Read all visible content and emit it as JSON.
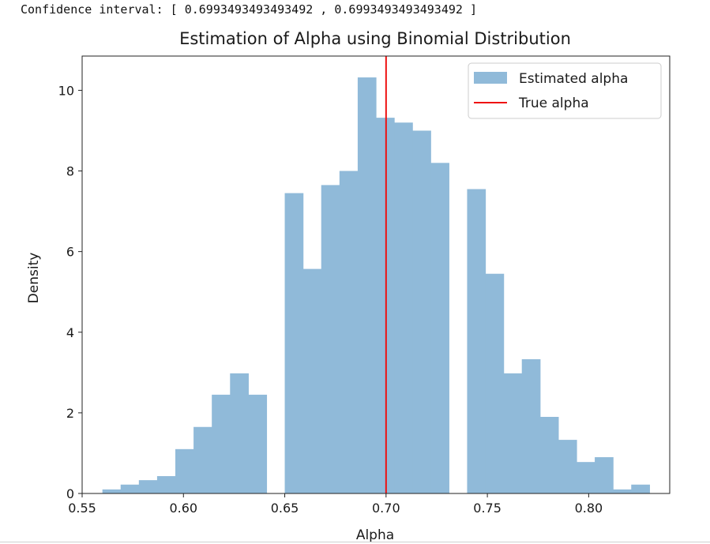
{
  "output": {
    "text": "Confidence interval: [ 0.6993493493493492 , 0.6993493493493492 ]"
  },
  "colors": {
    "bar": "#90bad9",
    "line": "#ee1111",
    "axis": "#222222"
  },
  "chart_data": {
    "type": "bar",
    "title": "Estimation of Alpha using Binomial Distribution",
    "xlabel": "Alpha",
    "ylabel": "Density",
    "xlim": [
      0.55,
      0.84
    ],
    "ylim": [
      0,
      10.85
    ],
    "xticks": [
      0.55,
      0.6,
      0.65,
      0.7,
      0.75,
      0.8
    ],
    "xtick_labels": [
      "0.55",
      "0.60",
      "0.65",
      "0.70",
      "0.75",
      "0.80"
    ],
    "yticks": [
      0,
      2,
      4,
      6,
      8,
      10
    ],
    "ytick_labels": [
      "0",
      "2",
      "4",
      "6",
      "8",
      "10"
    ],
    "bin_start": 0.56,
    "bin_width": 0.009,
    "values": [
      0.1,
      0.22,
      0.33,
      0.43,
      1.1,
      1.65,
      2.45,
      2.98,
      2.45,
      0,
      7.45,
      5.57,
      7.65,
      8.0,
      10.32,
      9.32,
      9.2,
      9.0,
      8.2,
      0,
      7.55,
      5.45,
      2.98,
      3.33,
      1.9,
      1.33,
      0.78,
      0.9,
      0.1,
      0.22
    ],
    "true_alpha": 0.7,
    "legend": {
      "position": "top-right",
      "entries": [
        "Estimated alpha",
        "True alpha"
      ]
    }
  }
}
